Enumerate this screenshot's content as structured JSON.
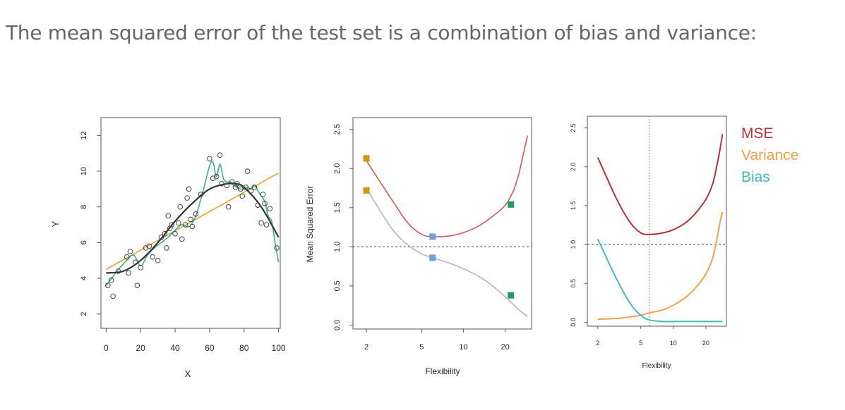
{
  "headline": "The mean squared error of the test set is a combination of bias and variance:",
  "chart_data": [
    {
      "type": "scatter",
      "xlabel": "X",
      "ylabel": "Y",
      "xticks": [
        "0",
        "20",
        "40",
        "60",
        "80",
        "100"
      ],
      "yticks": [
        "2",
        "4",
        "6",
        "8",
        "10",
        "12"
      ],
      "xlim": [
        -3,
        101
      ],
      "ylim": [
        1.2,
        13.0
      ],
      "points": [
        [
          1,
          3.6
        ],
        [
          3,
          3.9
        ],
        [
          4,
          3.0
        ],
        [
          7,
          4.4
        ],
        [
          12,
          5.2
        ],
        [
          13,
          4.3
        ],
        [
          14,
          5.5
        ],
        [
          17,
          4.9
        ],
        [
          18,
          3.6
        ],
        [
          20,
          4.6
        ],
        [
          23,
          5.7
        ],
        [
          25,
          5.8
        ],
        [
          27,
          5.2
        ],
        [
          30,
          5.0
        ],
        [
          32,
          6.3
        ],
        [
          34,
          6.5
        ],
        [
          35,
          5.7
        ],
        [
          36,
          7.5
        ],
        [
          37,
          6.8
        ],
        [
          38,
          7.0
        ],
        [
          40,
          6.5
        ],
        [
          42,
          7.1
        ],
        [
          43,
          8.0
        ],
        [
          44,
          6.2
        ],
        [
          46,
          7.0
        ],
        [
          47,
          8.5
        ],
        [
          48,
          9.0
        ],
        [
          49,
          7.3
        ],
        [
          50,
          6.9
        ],
        [
          52,
          7.6
        ],
        [
          55,
          8.7
        ],
        [
          60,
          10.7
        ],
        [
          62,
          9.6
        ],
        [
          64,
          9.7
        ],
        [
          66,
          10.9
        ],
        [
          67,
          9.3
        ],
        [
          70,
          9.2
        ],
        [
          71,
          8.0
        ],
        [
          73,
          9.4
        ],
        [
          75,
          9.1
        ],
        [
          76,
          9.3
        ],
        [
          78,
          9.0
        ],
        [
          79,
          8.6
        ],
        [
          81,
          9.1
        ],
        [
          82,
          10.0
        ],
        [
          84,
          8.9
        ],
        [
          86,
          9.1
        ],
        [
          88,
          8.1
        ],
        [
          90,
          7.1
        ],
        [
          91,
          8.7
        ],
        [
          92,
          8.2
        ],
        [
          93,
          7.0
        ],
        [
          95,
          7.9
        ],
        [
          99,
          5.7
        ]
      ],
      "series": [
        {
          "color": "#333333",
          "x": [
            0,
            10,
            20,
            30,
            40,
            50,
            60,
            70,
            75,
            80,
            90,
            100
          ],
          "y": [
            4.3,
            4.4,
            5.0,
            6.0,
            7.2,
            8.2,
            9.0,
            9.3,
            9.3,
            9.1,
            8.0,
            6.3
          ]
        },
        {
          "color": "#e3a52e",
          "x": [
            0,
            100
          ],
          "y": [
            4.5,
            9.9
          ]
        },
        {
          "color": "#3fb08f",
          "x": [
            0,
            4,
            8,
            12,
            16,
            20,
            24,
            28,
            32,
            36,
            40,
            44,
            48,
            52,
            56,
            60,
            62,
            64,
            66,
            68,
            70,
            72,
            74,
            76,
            78,
            80,
            82,
            84,
            86,
            88,
            90,
            92,
            94,
            96,
            98,
            100
          ],
          "y": [
            3.6,
            4.1,
            4.6,
            5.0,
            5.3,
            4.7,
            5.3,
            5.7,
            6.0,
            6.3,
            6.7,
            7.0,
            6.9,
            7.5,
            8.8,
            10.3,
            10.5,
            9.7,
            10.4,
            9.6,
            9.4,
            9.4,
            9.2,
            9.1,
            9.0,
            9.0,
            9.1,
            9.0,
            9.2,
            8.9,
            8.6,
            8.3,
            7.5,
            7.2,
            6.0,
            4.9
          ]
        }
      ]
    },
    {
      "type": "line",
      "xlabel": "Flexibility",
      "ylabel": "Mean Squared Error",
      "xticks": [
        "2",
        "5",
        "10",
        "20"
      ],
      "yticks": [
        "0.0",
        "0.5",
        "1.0",
        "1.5",
        "2.0",
        "2.5"
      ],
      "ylim": [
        -0.05,
        2.65
      ],
      "reference_line": 1.0,
      "series": [
        {
          "color": "#d9545e",
          "x": [
            2,
            3,
            4,
            5,
            6,
            8,
            10,
            13,
            16,
            20,
            23,
            25,
            27,
            29
          ],
          "y": [
            2.1,
            1.62,
            1.3,
            1.16,
            1.13,
            1.14,
            1.18,
            1.27,
            1.38,
            1.53,
            1.72,
            1.92,
            2.18,
            2.42
          ]
        },
        {
          "color": "#b5b5b5",
          "x": [
            2,
            3,
            4,
            5,
            6,
            8,
            10,
            13,
            16,
            20,
            23,
            25,
            27,
            29
          ],
          "y": [
            1.75,
            1.25,
            1.02,
            0.91,
            0.86,
            0.79,
            0.72,
            0.62,
            0.51,
            0.36,
            0.26,
            0.2,
            0.15,
            0.11
          ]
        }
      ],
      "markers": [
        {
          "x": 2,
          "y": 2.13,
          "color": "#d4950a"
        },
        {
          "x": 2,
          "y": 1.72,
          "color": "#d4950a"
        },
        {
          "x": 6,
          "y": 1.13,
          "color": "#6a9fe0"
        },
        {
          "x": 6,
          "y": 0.86,
          "color": "#6a9fe0"
        },
        {
          "x": 22,
          "y": 1.54,
          "color": "#1f9a6a"
        },
        {
          "x": 22,
          "y": 0.38,
          "color": "#1f9a6a"
        }
      ]
    },
    {
      "type": "line",
      "xlabel": "Flexibility",
      "yticks": [
        "0.0",
        "0.5",
        "1.0",
        "1.5",
        "2.0",
        "2.5"
      ],
      "xticks": [
        "2",
        "5",
        "10",
        "20"
      ],
      "ylim": [
        -0.05,
        2.65
      ],
      "reference_line": 1.0,
      "vertical_reference": 6,
      "legend": [
        "MSE",
        "Variance",
        "Bias"
      ],
      "series": [
        {
          "name": "MSE",
          "color": "#b5323a",
          "x": [
            2,
            3,
            4,
            5,
            6,
            8,
            10,
            13,
            16,
            20,
            23,
            25,
            27,
            28.5
          ],
          "y": [
            2.12,
            1.58,
            1.28,
            1.15,
            1.13,
            1.15,
            1.19,
            1.28,
            1.4,
            1.58,
            1.77,
            1.98,
            2.22,
            2.42
          ]
        },
        {
          "name": "Variance",
          "color": "#f0a24a",
          "x": [
            2,
            3,
            4,
            5,
            6,
            8,
            10,
            13,
            16,
            20,
            23,
            25,
            27,
            28.5
          ],
          "y": [
            0.04,
            0.05,
            0.07,
            0.09,
            0.12,
            0.16,
            0.22,
            0.32,
            0.44,
            0.62,
            0.82,
            1.03,
            1.28,
            1.42
          ]
        },
        {
          "name": "Bias",
          "color": "#3fbdbd",
          "x": [
            2,
            3,
            4,
            5,
            6,
            8,
            10,
            13,
            16,
            20,
            23,
            25,
            27,
            28.5
          ],
          "y": [
            1.07,
            0.55,
            0.24,
            0.09,
            0.03,
            0.01,
            0.01,
            0.01,
            0.01,
            0.01,
            0.01,
            0.01,
            0.01,
            0.01
          ]
        }
      ]
    }
  ]
}
